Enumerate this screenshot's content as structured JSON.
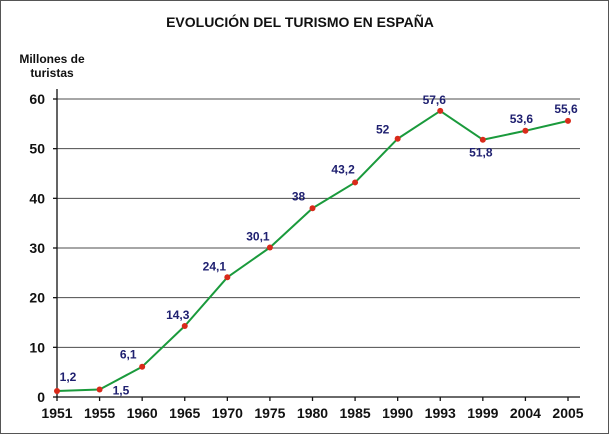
{
  "colors": {
    "line": "#1a9a3c",
    "marker": "#d92a1a",
    "data_label": "#1f2070"
  },
  "chart_data": {
    "type": "line",
    "title": "EVOLUCIÓN DEL TURISMO EN ESPAÑA",
    "ylabel_lines": [
      "Millones de",
      "turistas"
    ],
    "xlabel": "",
    "categories": [
      "1951",
      "1955",
      "1960",
      "1965",
      "1970",
      "1975",
      "1980",
      "1985",
      "1990",
      "1993",
      "1999",
      "2004",
      "2005"
    ],
    "series": [
      {
        "values": [
          1.2,
          1.5,
          6.1,
          14.3,
          24.1,
          30.1,
          38,
          43.2,
          52,
          57.6,
          51.8,
          53.6,
          55.6
        ],
        "labels": [
          "1,2",
          "1,5",
          "6,1",
          "14,3",
          "24,1",
          "30,1",
          "38",
          "43,2",
          "52",
          "57,6",
          "51,8",
          "53,6",
          "55,6"
        ]
      }
    ],
    "ylim": [
      0,
      60
    ],
    "yticks": [
      0,
      10,
      20,
      30,
      40,
      50,
      60
    ],
    "grid": true,
    "legend": "none"
  }
}
